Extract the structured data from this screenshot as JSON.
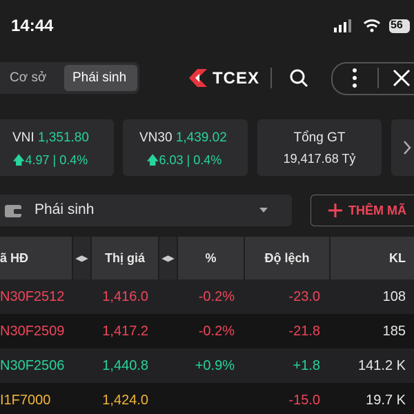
{
  "status_bar": {
    "time": "14:44",
    "battery": "56"
  },
  "nav": {
    "tabs": [
      "Cơ sở",
      "Phái sinh"
    ],
    "logo": "TCEX"
  },
  "indices": [
    {
      "name": "VNI",
      "value": "1,351.80",
      "change": "4.97 | 0.4%"
    },
    {
      "name": "VN30",
      "value": "1,439.02",
      "change": "6.03 | 0.4%"
    },
    {
      "name": "Tổng GT",
      "value": "19,417.68 Tỷ"
    }
  ],
  "toolbar": {
    "dropdown": "Phái sinh",
    "button": "THÊM MÃ"
  },
  "table": {
    "headers": [
      "ã HĐ",
      "Thị giá",
      "%",
      "Độ lệch",
      "KL"
    ],
    "rows": [
      [
        "N30F2512",
        "1,416.0",
        "-0.2%",
        "-23.0",
        "108"
      ],
      [
        "N30F2509",
        "1,417.2",
        "-0.2%",
        "-21.8",
        "185"
      ],
      [
        "N30F2506",
        "1,440.8",
        "+0.9%",
        "+1.8",
        "141.2 K"
      ],
      [
        "I1F7000",
        "1,424.0",
        "",
        "-15.0",
        "19.7 K"
      ]
    ]
  }
}
